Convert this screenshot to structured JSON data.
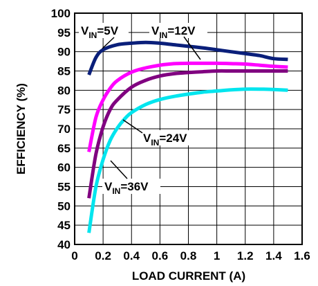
{
  "chart_data": {
    "type": "line",
    "xlabel": "LOAD CURRENT (A)",
    "ylabel": "EFFICIENCY (%)",
    "xlim": [
      0,
      1.6
    ],
    "ylim": [
      40,
      100
    ],
    "xticks": [
      "0",
      "0.2",
      "0.4",
      "0.6",
      "0.8",
      "1",
      "1.2",
      "1.4",
      "1.6"
    ],
    "yticks": [
      "40",
      "45",
      "50",
      "55",
      "60",
      "65",
      "70",
      "75",
      "80",
      "85",
      "90",
      "95",
      "100"
    ],
    "grid": true,
    "series": [
      {
        "name": "VIN=5V",
        "color": "#0a1f7a",
        "x": [
          0.1,
          0.15,
          0.2,
          0.3,
          0.4,
          0.5,
          0.6,
          0.7,
          0.8,
          0.9,
          1.0,
          1.1,
          1.2,
          1.3,
          1.4,
          1.5
        ],
        "y": [
          84,
          88.5,
          90.5,
          91.8,
          92.2,
          92.4,
          92.2,
          91.8,
          91.4,
          91,
          90.5,
          90,
          89.5,
          89,
          88.2,
          88
        ]
      },
      {
        "name": "VIN=12V",
        "color": "#ff00ff",
        "x": [
          0.1,
          0.15,
          0.2,
          0.25,
          0.3,
          0.4,
          0.5,
          0.6,
          0.7,
          0.8,
          0.9,
          1.0,
          1.1,
          1.2,
          1.3,
          1.4,
          1.5
        ],
        "y": [
          64,
          73,
          77.5,
          80.5,
          82.5,
          84.7,
          85.8,
          86.5,
          86.9,
          87,
          87,
          87,
          86.9,
          86.8,
          86.5,
          86.2,
          86
        ]
      },
      {
        "name": "VIN=24V",
        "color": "#800080",
        "x": [
          0.1,
          0.15,
          0.2,
          0.25,
          0.3,
          0.4,
          0.5,
          0.6,
          0.7,
          0.8,
          0.9,
          1.0,
          1.1,
          1.2,
          1.3,
          1.4,
          1.5
        ],
        "y": [
          52,
          63.5,
          70.5,
          75,
          77.5,
          80.8,
          82.6,
          83.7,
          84.3,
          84.6,
          84.8,
          85,
          85,
          85,
          85,
          85,
          85
        ]
      },
      {
        "name": "VIN=36V",
        "color": "#00e5ee",
        "x": [
          0.1,
          0.15,
          0.2,
          0.25,
          0.3,
          0.35,
          0.4,
          0.5,
          0.6,
          0.7,
          0.8,
          0.9,
          1.0,
          1.1,
          1.2,
          1.3,
          1.4,
          1.5
        ],
        "y": [
          43,
          55,
          62,
          67,
          70.2,
          72.5,
          74.2,
          76.3,
          77.6,
          78.4,
          79,
          79.5,
          79.8,
          80.1,
          80.3,
          80.3,
          80.2,
          80
        ]
      }
    ],
    "annotations": [
      {
        "text": "V",
        "sub": "IN",
        "rest": "=5V",
        "series": 0
      },
      {
        "text": "V",
        "sub": "IN",
        "rest": "=12V",
        "series": 1
      },
      {
        "text": "V",
        "sub": "IN",
        "rest": "=24V",
        "series": 2
      },
      {
        "text": "V",
        "sub": "IN",
        "rest": "=36V",
        "series": 3
      }
    ]
  }
}
